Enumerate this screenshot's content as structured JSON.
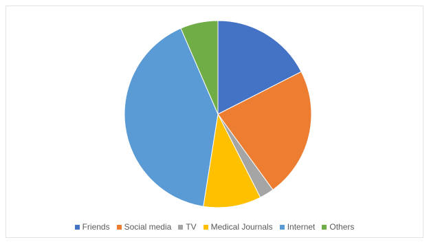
{
  "chart_data": {
    "type": "pie",
    "title": "",
    "start_angle_deg": 0,
    "direction": "clockwise",
    "legend_position": "bottom",
    "slices": [
      {
        "label": "Friends",
        "value": 17.5,
        "color": "#4472c4"
      },
      {
        "label": "Social media",
        "value": 22.5,
        "color": "#ed7d31"
      },
      {
        "label": "TV",
        "value": 2.5,
        "color": "#a5a5a5"
      },
      {
        "label": "Medical Journals",
        "value": 10,
        "color": "#ffc000"
      },
      {
        "label": "Internet",
        "value": 41,
        "color": "#5b9bd5"
      },
      {
        "label": "Others",
        "value": 6.5,
        "color": "#70ad47"
      }
    ]
  }
}
